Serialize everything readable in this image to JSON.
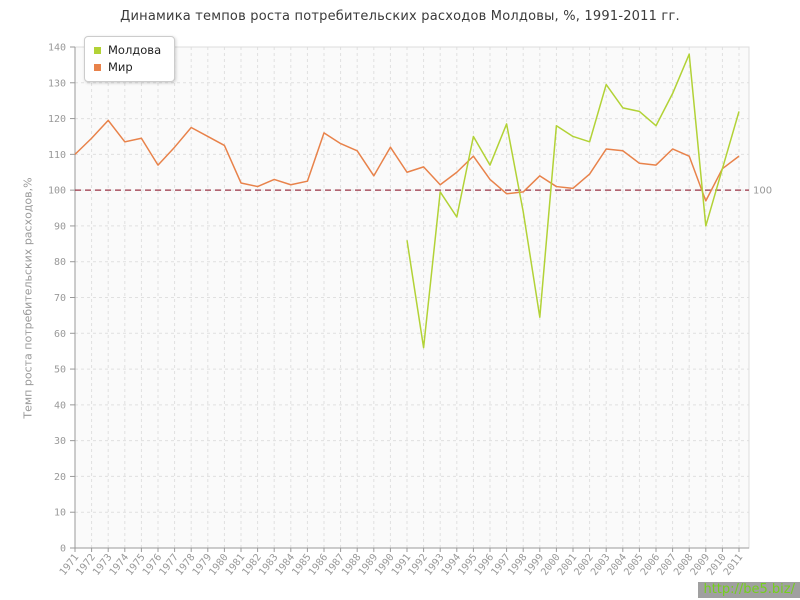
{
  "watermark": {
    "label": "http://be5.biz/"
  },
  "chart_data": {
    "type": "line",
    "title": "Динамика темпов роста потребительских расходов Молдовы, %, 1991-2011 гг.",
    "xlabel": "",
    "ylabel": "Темп роста потребительских расходов,%",
    "ylim": [
      0,
      140
    ],
    "ytick_step": 10,
    "grid": true,
    "legend_position": "top-left",
    "x": [
      1971,
      1972,
      1973,
      1974,
      1975,
      1976,
      1977,
      1978,
      1979,
      1980,
      1981,
      1982,
      1983,
      1984,
      1985,
      1986,
      1987,
      1988,
      1989,
      1990,
      1991,
      1992,
      1993,
      1994,
      1995,
      1996,
      1997,
      1998,
      1999,
      2000,
      2001,
      2002,
      2003,
      2004,
      2005,
      2006,
      2007,
      2008,
      2009,
      2010,
      2011
    ],
    "series": [
      {
        "name": "Молдова",
        "color": "#b2d236",
        "values": [
          null,
          null,
          null,
          null,
          null,
          null,
          null,
          null,
          null,
          null,
          null,
          null,
          null,
          null,
          null,
          null,
          null,
          null,
          null,
          null,
          86,
          56,
          99.5,
          92.5,
          115,
          107,
          118.5,
          94,
          64.5,
          118,
          115,
          113.5,
          129.5,
          123,
          122,
          118,
          127,
          138,
          90,
          106,
          122
        ]
      },
      {
        "name": "Мир",
        "color": "#e8824a",
        "values": [
          110,
          114.5,
          119.5,
          113.5,
          114.5,
          107,
          112,
          117.5,
          115,
          112.5,
          102,
          101,
          103,
          101.5,
          102.5,
          116,
          113,
          111,
          104,
          112,
          105,
          106.5,
          101.5,
          105,
          109.5,
          103,
          99,
          99.5,
          104,
          101,
          100.5,
          104.5,
          111.5,
          111,
          107.5,
          107,
          111.5,
          109.5,
          97,
          106,
          109.5
        ]
      }
    ],
    "ref_line": {
      "value": 100,
      "label": "100",
      "color": "#9b3344"
    },
    "colors": {
      "plot_bg": "#fafafa",
      "grid": "#e0e0e0",
      "border": "#dcdcdc",
      "axis": "#999999",
      "tick_text": "#999999"
    }
  }
}
